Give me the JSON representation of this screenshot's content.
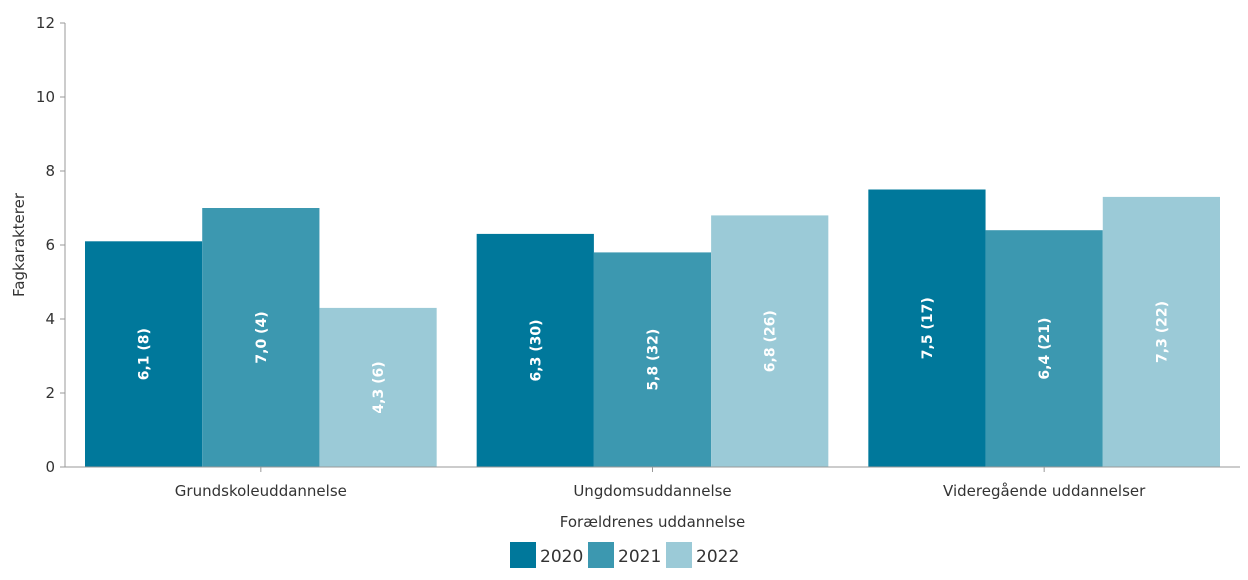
{
  "chart_data": {
    "type": "bar",
    "xlabel": "Forældrenes uddannelse",
    "ylabel": "Fagkarakterer",
    "ylim": [
      0,
      12
    ],
    "yticks": [
      "0",
      "2",
      "4",
      "6",
      "8",
      "10",
      "12"
    ],
    "ytick_values": [
      0,
      2,
      4,
      6,
      8,
      10,
      12
    ],
    "grid": false,
    "legend_position": "bottom-center",
    "categories": [
      "Grundskoleuddannelse",
      "Ungdomsuddannelse",
      "Videregående uddannelser"
    ],
    "series": [
      {
        "name": "2020",
        "color": "#00789b",
        "values": [
          6.1,
          6.3,
          7.5
        ],
        "labels": [
          "6,1 (8)",
          "6,3 (30)",
          "7,5 (17)"
        ]
      },
      {
        "name": "2021",
        "color": "#3c98b0",
        "values": [
          7.0,
          5.8,
          6.4
        ],
        "labels": [
          "7,0 (4)",
          "5,8 (32)",
          "6,4 (21)"
        ]
      },
      {
        "name": "2022",
        "color": "#9bcad7",
        "values": [
          4.3,
          6.8,
          7.3
        ],
        "labels": [
          "4,3 (6)",
          "6,8 (26)",
          "7,3 (22)"
        ]
      }
    ]
  }
}
